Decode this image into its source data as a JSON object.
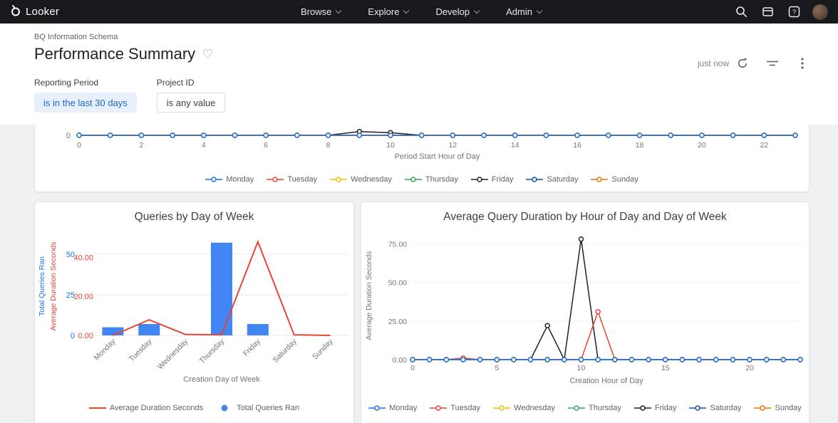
{
  "navbar": {
    "brand": "Looker",
    "menus": [
      "Browse",
      "Explore",
      "Develop",
      "Admin"
    ]
  },
  "icons": {
    "help_glyph": "?"
  },
  "header": {
    "breadcrumb": "BQ Information Schema",
    "title": "Performance Summary",
    "favorite_glyph": "♡",
    "last_updated": "just now"
  },
  "filters": [
    {
      "label": "Reporting Period",
      "value": "is in the last 30 days",
      "active": true
    },
    {
      "label": "Project ID",
      "value": "is any value",
      "active": false
    }
  ],
  "chart_data": [
    {
      "id": "queries-by-hour",
      "type": "line",
      "title": "",
      "xlabel": "Period Start Hour of Day",
      "x": [
        0,
        1,
        2,
        3,
        4,
        5,
        6,
        7,
        8,
        9,
        10,
        11,
        12,
        13,
        14,
        15,
        16,
        17,
        18,
        19,
        20,
        21,
        22,
        23
      ],
      "xticks": [
        0,
        2,
        4,
        6,
        8,
        10,
        12,
        14,
        16,
        18,
        20,
        22
      ],
      "yticks": [
        "0"
      ],
      "clipped": true,
      "series": [
        {
          "name": "Monday",
          "color": "#1A73E8",
          "values": [
            0,
            0,
            0,
            0,
            0,
            0,
            0,
            0,
            0,
            0,
            0,
            0,
            0,
            0,
            0,
            0,
            0,
            0,
            0,
            0,
            0,
            0,
            0,
            0
          ]
        },
        {
          "name": "Tuesday",
          "color": "#EA4335",
          "values": [
            0,
            0,
            0,
            0,
            0,
            0,
            0,
            0,
            0,
            0,
            0,
            0,
            0,
            0,
            0,
            0,
            0,
            0,
            0,
            0,
            0,
            0,
            0,
            0
          ]
        },
        {
          "name": "Wednesday",
          "color": "#FBBC04",
          "values": [
            0,
            0,
            0,
            0,
            0,
            0,
            0,
            0,
            0,
            0,
            0,
            0,
            0,
            0,
            0,
            0,
            0,
            0,
            0,
            0,
            0,
            0,
            0,
            0
          ]
        },
        {
          "name": "Thursday",
          "color": "#34A853",
          "values": [
            0,
            0,
            0,
            0,
            0,
            0,
            0,
            0,
            0,
            0,
            0,
            0,
            0,
            0,
            0,
            0,
            0,
            0,
            0,
            0,
            0,
            0,
            0,
            0
          ]
        },
        {
          "name": "Friday",
          "color": "#202124",
          "values": [
            0,
            0,
            0,
            0,
            0,
            0,
            0,
            0,
            0,
            1.3,
            0.9,
            0,
            0,
            0,
            0,
            0,
            0,
            0,
            0,
            0,
            0,
            0,
            0,
            0
          ]
        },
        {
          "name": "Saturday",
          "color": "#174EA6",
          "values": [
            0,
            0,
            0,
            0,
            0,
            0,
            0,
            0,
            0,
            0,
            0,
            0,
            0,
            0,
            0,
            0,
            0,
            0,
            0,
            0,
            0,
            0,
            0,
            0
          ]
        },
        {
          "name": "Sunday",
          "color": "#E8710A",
          "values": [
            0,
            0,
            0,
            0,
            0,
            0,
            0,
            0,
            0,
            0,
            0,
            0,
            0,
            0,
            0,
            0,
            0,
            0,
            0,
            0,
            0,
            0,
            0,
            0
          ]
        }
      ]
    },
    {
      "id": "queries-by-day",
      "type": "combo",
      "title": "Queries by Day of Week",
      "xlabel": "Creation Day of Week",
      "categories": [
        "Monday",
        "Tuesday",
        "Wednesday",
        "Thursday",
        "Friday",
        "Saturday",
        "Sunday"
      ],
      "left_axis": {
        "label": "Total Queries Ran",
        "color": "#1A73E8",
        "ticks": [
          "0",
          "25",
          "50"
        ],
        "tick_values": [
          0,
          25,
          50
        ],
        "max": 60
      },
      "right_axis": {
        "label": "Average Duration Seconds",
        "color": "#EA4335",
        "ticks": [
          "0.00",
          "20.00",
          "40.00"
        ],
        "tick_values": [
          0,
          20,
          40
        ],
        "max": 50
      },
      "bars": {
        "name": "Total Queries Ran",
        "color": "#4285F4",
        "values": [
          5,
          7,
          0,
          57,
          7,
          0,
          0
        ]
      },
      "line": {
        "name": "Average Duration Seconds",
        "color": "#EA4335",
        "values": [
          0,
          8,
          0.5,
          0.3,
          48,
          0.3,
          0
        ]
      },
      "legend": [
        {
          "label": "Average Duration Seconds",
          "glyph": "line",
          "color": "#EA4335"
        },
        {
          "label": "Total Queries Ran",
          "glyph": "dot",
          "color": "#4285F4"
        }
      ]
    },
    {
      "id": "duration-by-hour",
      "type": "line",
      "title": "Average Query Duration by Hour of Day and Day of Week",
      "xlabel": "Creation Hour of Day",
      "ylabel": "Average Duration Seconds",
      "x": [
        0,
        1,
        2,
        3,
        4,
        5,
        6,
        7,
        8,
        9,
        10,
        11,
        12,
        13,
        14,
        15,
        16,
        17,
        18,
        19,
        20,
        21,
        22,
        23
      ],
      "xticks": [
        0,
        5,
        10,
        15,
        20
      ],
      "yticks": [
        "0.00",
        "25.00",
        "50.00",
        "75.00"
      ],
      "ytick_values": [
        0,
        25,
        50,
        75
      ],
      "ymax": 82.5,
      "series": [
        {
          "name": "Monday",
          "color": "#1A73E8",
          "values": [
            0,
            0,
            0,
            0,
            0,
            0,
            0,
            0,
            0,
            0,
            0,
            0,
            0,
            0,
            0,
            0,
            0,
            0,
            0,
            0,
            0,
            0,
            0,
            0
          ]
        },
        {
          "name": "Tuesday",
          "color": "#EA4335",
          "values": [
            0,
            0,
            0,
            1,
            0,
            0,
            0,
            0,
            0,
            0,
            0,
            31,
            0,
            0,
            0,
            0,
            0,
            0,
            0,
            0,
            0,
            0,
            0,
            0
          ]
        },
        {
          "name": "Wednesday",
          "color": "#FBBC04",
          "values": [
            0,
            0,
            0,
            0,
            0,
            0,
            0,
            0,
            0,
            0,
            0,
            0,
            0,
            0,
            0,
            0,
            0,
            0,
            0,
            0,
            0,
            0,
            0,
            0
          ]
        },
        {
          "name": "Thursday",
          "color": "#34A853",
          "values": [
            0,
            0,
            0,
            0,
            0,
            0,
            0,
            0,
            0,
            0,
            0,
            0,
            0,
            0,
            0,
            0,
            0,
            0,
            0,
            0,
            0,
            0,
            0,
            0
          ]
        },
        {
          "name": "Friday",
          "color": "#202124",
          "values": [
            0,
            0,
            0,
            0,
            0,
            0,
            0,
            0,
            22,
            0,
            78,
            0,
            0,
            0,
            0,
            0,
            0,
            0,
            0,
            0,
            0,
            0,
            0,
            0
          ]
        },
        {
          "name": "Saturday",
          "color": "#174EA6",
          "values": [
            0,
            0,
            0,
            0,
            0,
            0,
            0,
            0,
            0,
            0,
            0,
            0,
            0,
            0,
            0,
            0,
            0,
            0,
            0,
            0,
            0,
            0,
            0,
            0
          ]
        },
        {
          "name": "Sunday",
          "color": "#E8710A",
          "values": [
            0,
            0,
            0,
            0,
            0,
            0,
            0,
            0,
            0,
            0,
            0,
            0,
            0,
            0,
            0,
            0,
            0,
            0,
            0,
            0,
            0,
            0,
            0,
            0
          ]
        }
      ]
    }
  ]
}
